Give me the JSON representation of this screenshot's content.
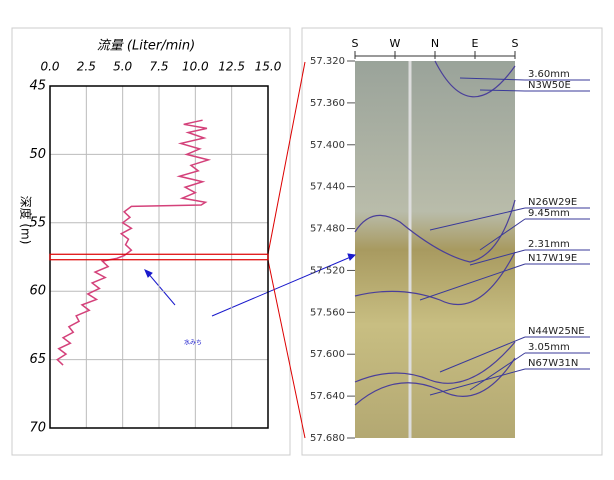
{
  "chart_data": [
    {
      "type": "line",
      "title": "流量 (Liter/min)",
      "y_label": "深度 (m)",
      "color": "#d4417a",
      "xlim": [
        0,
        15
      ],
      "xticks": [
        {
          "value": 0,
          "label": "0.0"
        },
        {
          "value": 2.5,
          "label": "2.5"
        },
        {
          "value": 5,
          "label": "5.0"
        },
        {
          "value": 7.5,
          "label": "7.5"
        },
        {
          "value": 10,
          "label": "10.0"
        },
        {
          "value": 12.5,
          "label": "12.5"
        },
        {
          "value": 15,
          "label": "15.0"
        }
      ],
      "ylim": [
        45,
        70
      ],
      "yticks": [
        45,
        50,
        55,
        60,
        65,
        70
      ],
      "grid": true,
      "y_inverted": true,
      "x": [
        10.5,
        9.2,
        10.8,
        9.5,
        10.6,
        9.0,
        10.3,
        9.4,
        10.9,
        9.7,
        10.2,
        8.9,
        10.5,
        9.3,
        10.0,
        9.1,
        10.7,
        10.4,
        5.6,
        5.1,
        5.5,
        5.0,
        5.6,
        4.9,
        5.4,
        5.2,
        5.6,
        5.1,
        4.6,
        3.6,
        4.0,
        3.1,
        3.8,
        2.9,
        3.4,
        2.6,
        3.2,
        2.2,
        2.7,
        1.8,
        2.0,
        1.3,
        1.6,
        0.9,
        1.4,
        0.6,
        1.1,
        0.5,
        0.9
      ],
      "values": [
        47.5,
        47.8,
        48.1,
        48.4,
        48.8,
        49.2,
        49.6,
        50.0,
        50.4,
        50.8,
        51.2,
        51.6,
        52.0,
        52.4,
        52.8,
        53.2,
        53.5,
        53.7,
        53.8,
        54.2,
        54.6,
        55.0,
        55.4,
        55.8,
        56.2,
        56.6,
        57.0,
        57.4,
        57.6,
        57.8,
        58.2,
        58.6,
        59.0,
        59.4,
        59.8,
        60.2,
        60.6,
        61.0,
        61.4,
        61.8,
        62.2,
        62.6,
        63.0,
        63.4,
        63.8,
        64.2,
        64.6,
        65.0,
        65.4
      ],
      "highlight": [
        57.3,
        57.7
      ],
      "annotation": "水みち"
    },
    {
      "type": "image",
      "ylim": [
        57.32,
        57.68
      ],
      "yticks": [
        {
          "value": 57.32,
          "label": "57.320"
        },
        {
          "value": 57.36,
          "label": "57.360"
        },
        {
          "value": 57.4,
          "label": "57.400"
        },
        {
          "value": 57.44,
          "label": "57.440"
        },
        {
          "value": 57.48,
          "label": "57.480"
        },
        {
          "value": 57.52,
          "label": "57.520"
        },
        {
          "value": 57.56,
          "label": "57.560"
        },
        {
          "value": 57.6,
          "label": "57.600"
        },
        {
          "value": 57.64,
          "label": "57.640"
        },
        {
          "value": 57.68,
          "label": "57.680"
        }
      ],
      "compass": [
        "S",
        "W",
        "N",
        "E",
        "S"
      ],
      "annotations": [
        "3.60mm",
        "N3W50E",
        "N26W29E",
        "9.45mm",
        "2.31mm",
        "N17W19E",
        "N44W25NE",
        "3.05mm",
        "N67W31N"
      ]
    }
  ]
}
